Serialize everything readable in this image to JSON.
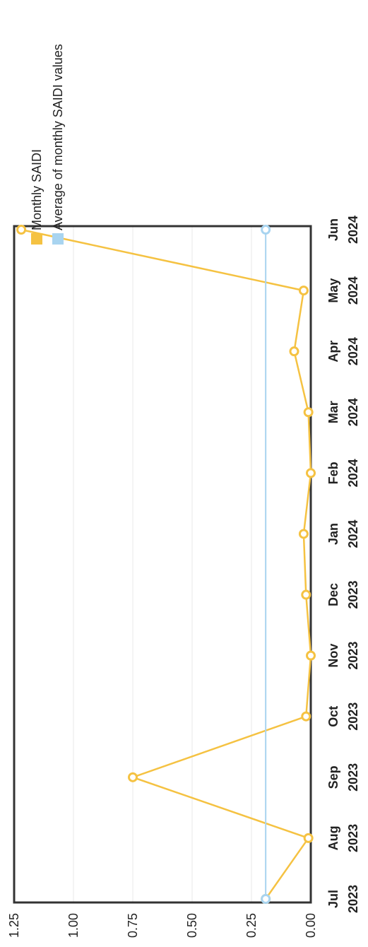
{
  "chart_data": {
    "type": "line",
    "orientation": "rotated-90-ccw",
    "categories": [
      [
        "Jul",
        "2023"
      ],
      [
        "Aug",
        "2023"
      ],
      [
        "Sep",
        "2023"
      ],
      [
        "Oct",
        "2023"
      ],
      [
        "Nov",
        "2023"
      ],
      [
        "Dec",
        "2023"
      ],
      [
        "Jan",
        "2024"
      ],
      [
        "Feb",
        "2024"
      ],
      [
        "Mar",
        "2024"
      ],
      [
        "Apr",
        "2024"
      ],
      [
        "May",
        "2024"
      ],
      [
        "Jun",
        "2024"
      ]
    ],
    "series": [
      {
        "name": "Monthly SAIDI",
        "color": "#f5c242",
        "values": [
          0.19,
          0.01,
          0.75,
          0.02,
          0.0,
          0.02,
          0.03,
          0.0,
          0.01,
          0.07,
          0.03,
          1.22
        ]
      },
      {
        "name": "Average of monthly SAIDI values",
        "color": "#a8d4f0",
        "values": [
          0.19,
          0.19,
          0.19,
          0.19,
          0.19,
          0.19,
          0.19,
          0.19,
          0.19,
          0.19,
          0.19,
          0.19
        ],
        "markers_on": [
          0,
          11
        ]
      }
    ],
    "y_ticks": [
      "0.00",
      "0.25",
      "0.50",
      "0.75",
      "1.00",
      "1.25"
    ],
    "ylim": [
      0,
      1.25
    ],
    "grid": "horizontal",
    "legend_position": "top-right"
  }
}
